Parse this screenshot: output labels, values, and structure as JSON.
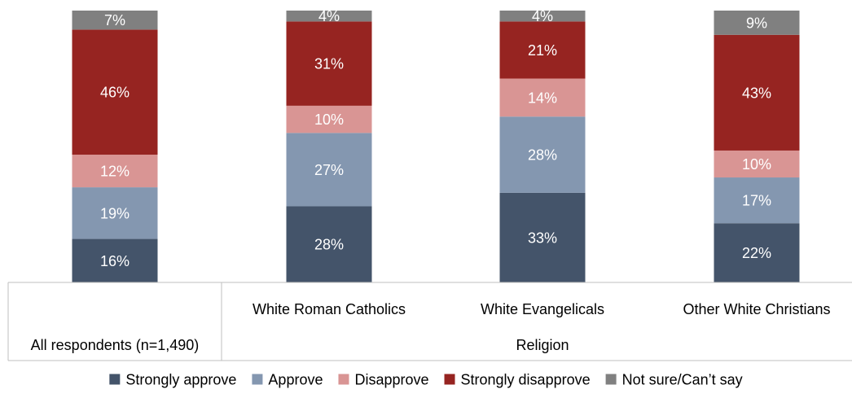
{
  "chart_data": {
    "type": "bar",
    "stacked": true,
    "percent_stacked": true,
    "grid": false,
    "legend_position": "bottom",
    "categories": [
      "All respondents (n=1,490)",
      "White Roman Catholics",
      "White Evangelicals",
      "Other White Christians"
    ],
    "group_label": "Religion",
    "series": [
      {
        "name": "Strongly approve",
        "color": "#44546a",
        "values": [
          16,
          28,
          33,
          22
        ],
        "labels": [
          "16%",
          "28%",
          "33%",
          "22%"
        ]
      },
      {
        "name": "Approve",
        "color": "#8497b0",
        "values": [
          19,
          27,
          28,
          17
        ],
        "labels": [
          "19%",
          "27%",
          "28%",
          "17%"
        ]
      },
      {
        "name": "Disapprove",
        "color": "#d99594",
        "values": [
          12,
          10,
          14,
          10
        ],
        "labels": [
          "12%",
          "10%",
          "14%",
          "10%"
        ]
      },
      {
        "name": "Strongly disapprove",
        "color": "#962421",
        "values": [
          46,
          31,
          21,
          43
        ],
        "labels": [
          "46%",
          "31%",
          "21%",
          "43%"
        ]
      },
      {
        "name": "Not sure/Can’t say",
        "color": "#808080",
        "values": [
          7,
          4,
          4,
          9
        ],
        "labels": [
          "7%",
          "4%",
          "4%",
          "9%"
        ]
      }
    ],
    "ylim": [
      0,
      100
    ]
  }
}
